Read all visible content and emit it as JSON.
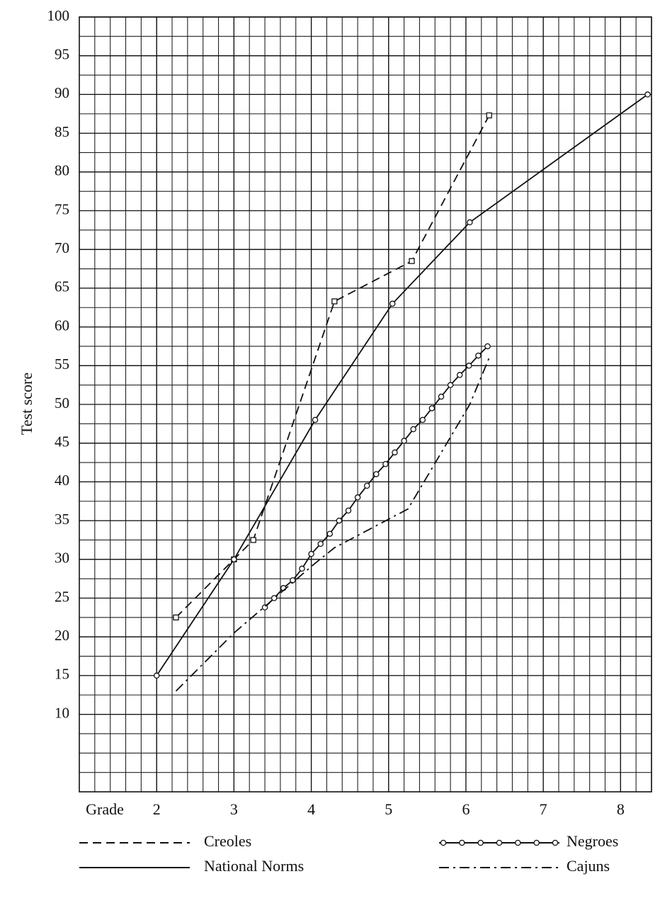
{
  "chart_data": {
    "type": "line",
    "y_label": "Test score",
    "x_label": "Grade",
    "xlim": [
      1,
      8.4
    ],
    "ylim": [
      0,
      100
    ],
    "xticks": [
      2,
      3,
      4,
      5,
      6,
      7,
      8
    ],
    "yticks": [
      10,
      15,
      20,
      25,
      30,
      35,
      40,
      45,
      50,
      55,
      60,
      65,
      70,
      75,
      80,
      85,
      90,
      95,
      100
    ],
    "grid": true,
    "minor_grid": true,
    "series": [
      {
        "name": "Creoles",
        "color": "#111111",
        "line_style": "dashed",
        "marker": "square",
        "x": [
          2.25,
          3.0,
          3.25,
          4.3,
          5.3,
          6.3
        ],
        "values": [
          22.5,
          30,
          32.5,
          63.3,
          68.5,
          87.3
        ]
      },
      {
        "name": "National Norms",
        "color": "#111111",
        "line_style": "solid",
        "marker": "circle",
        "x": [
          2.0,
          3.0,
          4.05,
          5.05,
          6.05,
          8.35
        ],
        "values": [
          15,
          30,
          48,
          63,
          73.5,
          90
        ]
      },
      {
        "name": "Negroes",
        "color": "#111111",
        "line_style": "solid",
        "marker": "circle",
        "x": [
          3.4,
          3.52,
          3.64,
          3.76,
          3.88,
          4.0,
          4.12,
          4.24,
          4.36,
          4.48,
          4.6,
          4.72,
          4.84,
          4.96,
          5.08,
          5.2,
          5.32,
          5.44,
          5.56,
          5.68,
          5.8,
          5.92,
          6.04,
          6.16,
          6.28
        ],
        "values": [
          23.8,
          25,
          26.3,
          27.3,
          28.8,
          30.7,
          32,
          33.3,
          35,
          36.3,
          38,
          39.5,
          41,
          42.3,
          43.8,
          45.3,
          46.8,
          48,
          49.5,
          51,
          52.5,
          53.8,
          55,
          56.3,
          57.5
        ]
      },
      {
        "name": "Cajuns",
        "color": "#111111",
        "line_style": "dashdot",
        "marker": "none",
        "x": [
          2.25,
          3.0,
          4.05,
          4.3,
          5.25,
          6.05,
          6.3
        ],
        "values": [
          13,
          20.5,
          29.5,
          31.5,
          36.5,
          50,
          56
        ]
      }
    ]
  }
}
